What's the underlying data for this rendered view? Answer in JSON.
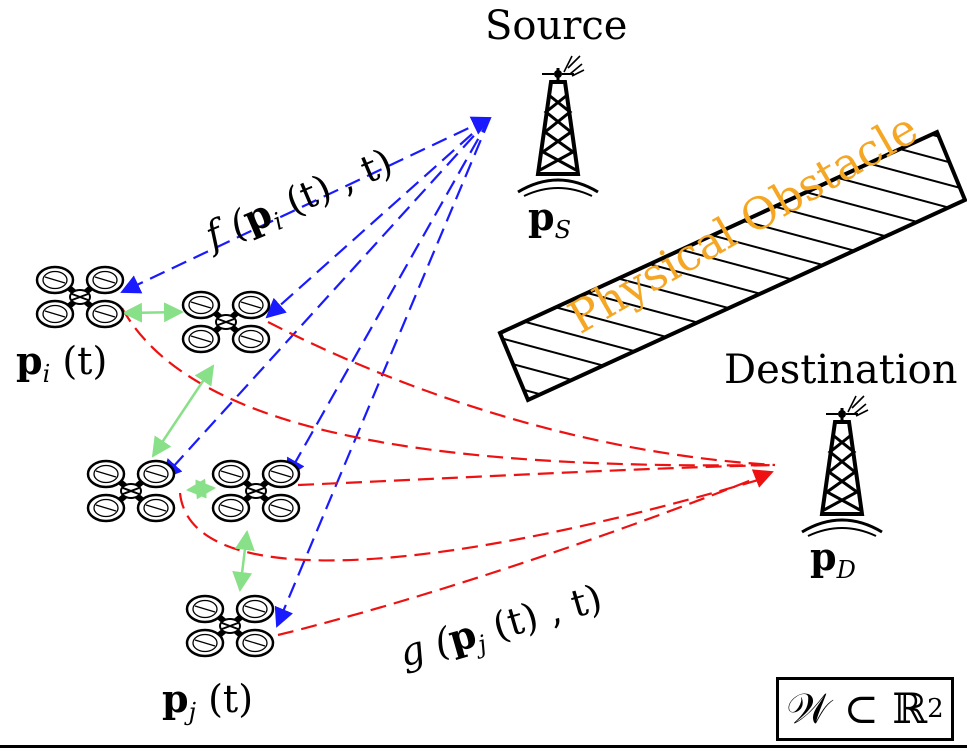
{
  "labels": {
    "source": "Source",
    "destination": "Destination",
    "obstacle": "Physical Obstacle",
    "p_s_base": "p",
    "p_s_sub": "S",
    "p_d_base": "p",
    "p_d_sub": "D",
    "p_i_base": "p",
    "p_i_sub": "i",
    "p_i_arg": " (t)",
    "p_j_base": "p",
    "p_j_sub": "j",
    "p_j_arg": " (t)",
    "f_name": "f (",
    "f_p": "p",
    "f_sub": "i",
    "f_rest": " (t) , t)",
    "g_name": "g (",
    "g_p": "p",
    "g_sub": "j",
    "g_rest": " (t) , t)",
    "workspace_lhs": "𝒲 ⊂ ℝ",
    "workspace_sup": "2"
  },
  "colors": {
    "source_links": "#1a1aff",
    "destination_links": "#ee1111",
    "inter_uav_links": "#88e088",
    "obstacle_text": "#f5a623"
  },
  "icons": {
    "towers": [
      "source-tower-icon",
      "destination-tower-icon"
    ],
    "uavs": [
      "uav-i-icon",
      "uav-2-icon",
      "uav-3-icon",
      "uav-4-icon",
      "uav-j-icon"
    ]
  }
}
